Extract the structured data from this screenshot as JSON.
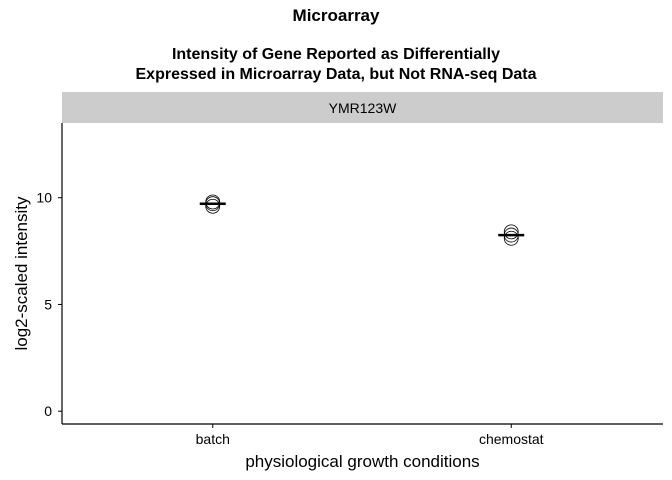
{
  "title": "Microarray",
  "subtitle_line1": "Intensity of Gene Reported as Differentially",
  "subtitle_line2": "Expressed in Microarray Data, but Not RNA-seq Data",
  "chart_data": {
    "type": "scatter",
    "facet_label": "YMR123W",
    "xlabel": "physiological growth conditions",
    "ylabel": "log2-scaled intensity",
    "categories": [
      "batch",
      "chemostat"
    ],
    "ylim": [
      -0.6,
      13.5
    ],
    "yticks": [
      0,
      5,
      10
    ],
    "points": [
      {
        "x": "batch",
        "y": 9.6
      },
      {
        "x": "batch",
        "y": 9.72
      },
      {
        "x": "batch",
        "y": 9.8
      },
      {
        "x": "chemostat",
        "y": 8.1
      },
      {
        "x": "chemostat",
        "y": 8.25
      },
      {
        "x": "chemostat",
        "y": 8.4
      }
    ],
    "means": [
      {
        "x": "batch",
        "y": 9.72
      },
      {
        "x": "chemostat",
        "y": 8.25
      }
    ],
    "grid": false
  }
}
